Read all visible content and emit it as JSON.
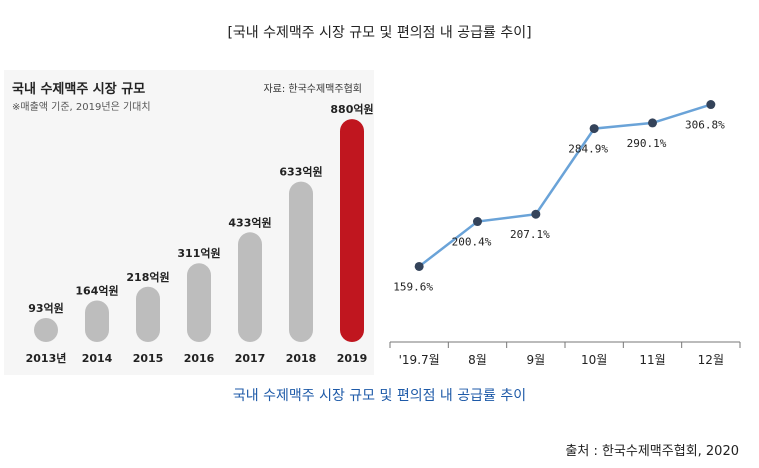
{
  "page_title": "[국내 수제맥주 시장 규모 및 편의점 내 공급률 추이]",
  "subtitle": "국내 수제맥주 시장 규모 및 편의점 내 공급률 추이",
  "source_line": "출처 : 한국수제맥주협회, 2020",
  "colors": {
    "bar_normal": "#bdbdbd",
    "bar_highlight": "#c0161f",
    "line": "#6aa3d8",
    "marker": "#34435a",
    "subtitle": "#1e5aa8"
  },
  "chart_data": [
    {
      "type": "bar",
      "title": "국내 수제맥주 시장 규모",
      "note": "※매출액 기준, 2019년은 기대치",
      "source": "자료: 한국수제맥주협회",
      "categories": [
        "2013년",
        "2014",
        "2015",
        "2016",
        "2017",
        "2018",
        "2019"
      ],
      "values": [
        93,
        164,
        218,
        311,
        433,
        633,
        880
      ],
      "value_labels": [
        "93억원",
        "164억원",
        "218억원",
        "311억원",
        "433억원",
        "633억원",
        "880억원"
      ],
      "highlight_index": 6,
      "unit": "억원",
      "ylim": [
        0,
        900
      ]
    },
    {
      "type": "line",
      "categories": [
        "'19.7월",
        "8월",
        "9월",
        "10월",
        "11월",
        "12월"
      ],
      "values": [
        159.6,
        200.4,
        207.1,
        284.9,
        290.1,
        306.8
      ],
      "value_labels": [
        "159.6%",
        "200.4%",
        "207.1%",
        "284.9%",
        "290.1%",
        "306.8%"
      ],
      "unit": "%",
      "ylim": [
        140,
        320
      ]
    }
  ]
}
